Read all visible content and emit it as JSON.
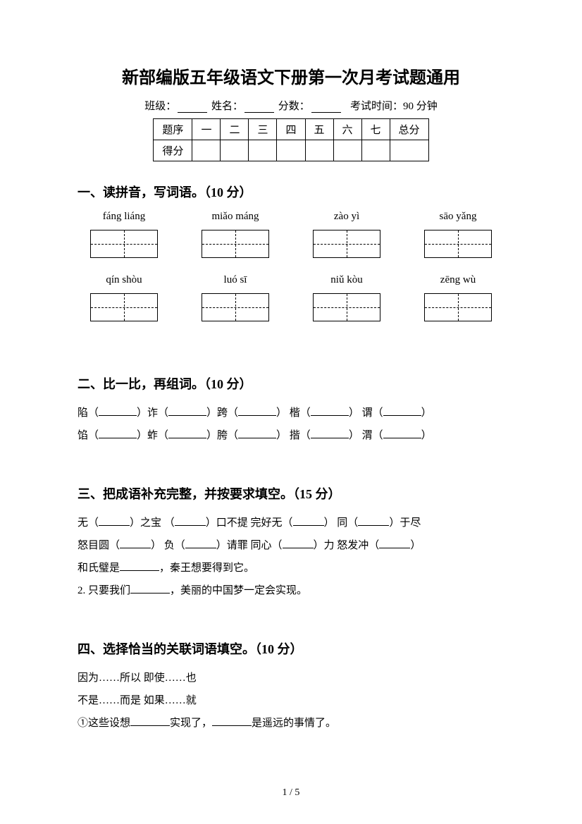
{
  "title": "新部编版五年级语文下册第一次月考试题通用",
  "meta": {
    "class_label": "班级：",
    "name_label": "姓名：",
    "score_label": "分数：",
    "exam_time": "考试时间：90 分钟"
  },
  "score_table": {
    "row1": [
      "题序",
      "一",
      "二",
      "三",
      "四",
      "五",
      "六",
      "七",
      "总分"
    ],
    "row2_label": "得分"
  },
  "section1": {
    "title": "一、读拼音，写词语。（10 分）",
    "pinyin_row1": [
      "fáng liáng",
      "miǎo máng",
      "zào yì",
      "sāo yǎng"
    ],
    "pinyin_row2": [
      "qín shòu",
      "luó sī",
      "niǔ kòu",
      "zēng wù"
    ]
  },
  "section2": {
    "title": "二、比一比，再组词。（10 分）",
    "line1": [
      "陷（",
      "）诈（",
      "）跨（",
      "） 楷（",
      "） 谓（",
      "）"
    ],
    "line2": [
      "馅（",
      "）蚱（",
      "）胯（",
      "） 揩（",
      "） 渭（",
      "）"
    ]
  },
  "section3": {
    "title": "三、把成语补充完整，并按要求填空。（15 分）",
    "line1_parts": [
      "无（",
      "）之宝  （",
      "）口不提   完好无（",
      "）   同（",
      "）于尽"
    ],
    "line2_parts": [
      "怒目圆（",
      "）  负（",
      "）请罪   同心（",
      "）力   怒发冲（",
      "）"
    ],
    "line3": "和氏璧是",
    "line3_b": "，秦王想要得到它。",
    "line4_a": "2. 只要我们",
    "line4_b": "，美丽的中国梦一定会实现。"
  },
  "section4": {
    "title": "四、选择恰当的关联词语填空。（10 分）",
    "line1": "因为……所以        即使……也",
    "line2": "不是……而是        如果……就",
    "line3_a": "①这些设想",
    "line3_b": "实现了，",
    "line3_c": "是遥远的事情了。"
  },
  "page_num": "1 / 5"
}
